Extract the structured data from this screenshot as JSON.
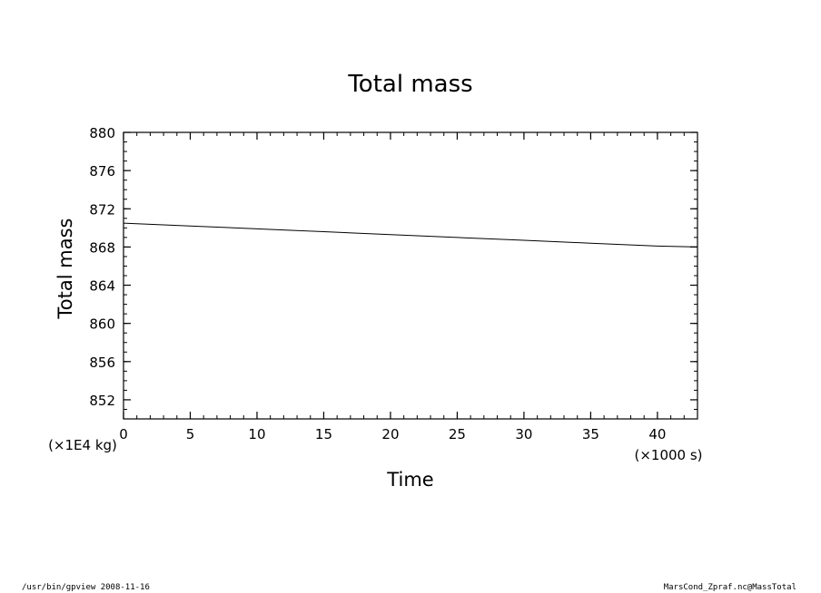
{
  "chart_data": {
    "type": "line",
    "title": "Total mass",
    "xlabel": "Time",
    "ylabel": "Total mass",
    "x_unit": "(×1000 s)",
    "y_unit": "(×1E4 kg)",
    "xlim": [
      0,
      43
    ],
    "ylim": [
      850,
      880
    ],
    "x_ticks": [
      0,
      5,
      10,
      15,
      20,
      25,
      30,
      35,
      40
    ],
    "x_tick_labels": [
      "0",
      "5",
      "10",
      "15",
      "20",
      "25",
      "30",
      "35",
      "40"
    ],
    "y_ticks": [
      852,
      856,
      860,
      864,
      868,
      872,
      876,
      880
    ],
    "y_tick_labels": [
      "852",
      "856",
      "860",
      "864",
      "868",
      "872",
      "876",
      "880"
    ],
    "x_minor_step": 1,
    "y_minor_step": 1,
    "grid": false,
    "series": [
      {
        "x": [
          0,
          5,
          10,
          15,
          20,
          25,
          30,
          35,
          40,
          43
        ],
        "values": [
          870.5,
          870.2,
          869.9,
          869.6,
          869.3,
          869.0,
          868.7,
          868.4,
          868.1,
          868.0
        ]
      }
    ]
  },
  "footer": {
    "left": "/usr/bin/gpview   2008-11-16",
    "right": "MarsCond_Zpraf.nc@MassTotal"
  }
}
